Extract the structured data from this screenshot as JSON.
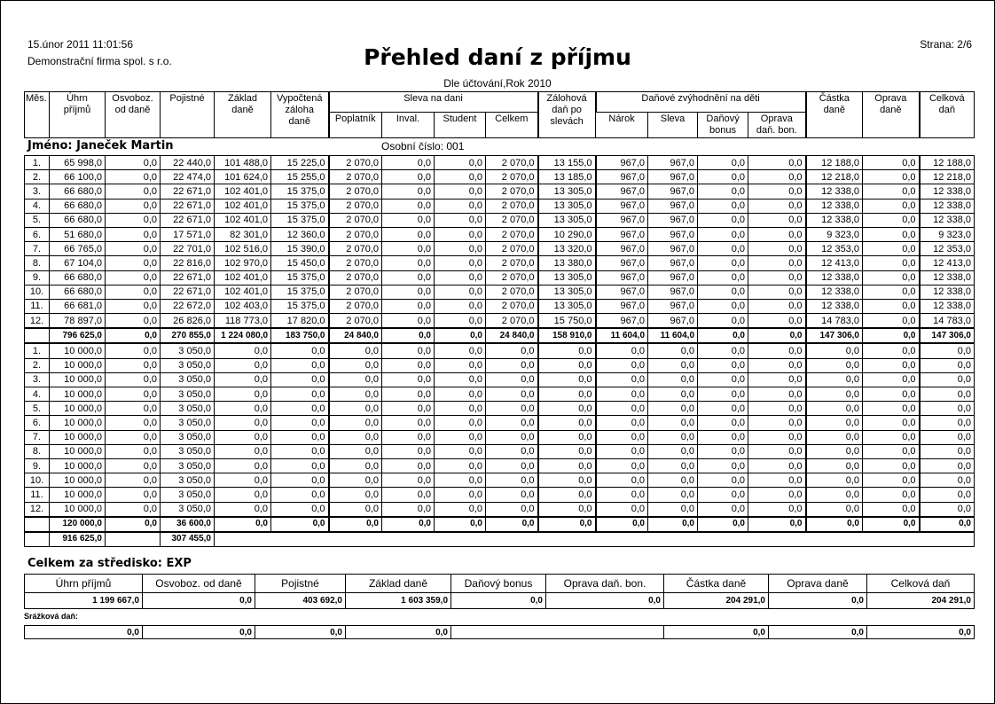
{
  "header": {
    "date": "15.únor 2011  11:01:56",
    "firm": "Demonstrační firma spol. s r.o.",
    "title": "Přehled daní z příjmu",
    "subtitle": "Dle účtování,Rok 2010",
    "page": "Strana: 2/6"
  },
  "columns": {
    "mes": "Měs.",
    "uhrn": "Úhrn\npříjmů",
    "osvoboz": "Osvoboz.\nod daně",
    "pojistne": "Pojistné",
    "zaklad": "Základ\ndaně",
    "vypoctena": "Vypočtená\nzáloha\ndaně",
    "sleva_group": "Sleva na dani",
    "poplatnik": "Poplatník",
    "inval": "Inval.",
    "student": "Student",
    "celkem": "Celkem",
    "zalohova": "Zálohová\ndaň po\nslevách",
    "deti_group": "Daňové zvýhodnění na děti",
    "narok": "Nárok",
    "sleva": "Sleva",
    "bonus": "Daňový\nbonus",
    "oprava_bon": "Oprava\ndaň. bon.",
    "castka": "Částka\ndaně",
    "oprava": "Oprava\ndaně",
    "celkova": "Celková\ndaň"
  },
  "employee": {
    "name": "Jméno: Janeček Martin",
    "personal_number": "Osobní číslo: 001"
  },
  "block1": {
    "rows": [
      [
        "1.",
        "65 998,0",
        "0,0",
        "22 440,0",
        "101 488,0",
        "15 225,0",
        "2 070,0",
        "0,0",
        "0,0",
        "2 070,0",
        "13 155,0",
        "967,0",
        "967,0",
        "0,0",
        "0,0",
        "12 188,0",
        "0,0",
        "12 188,0"
      ],
      [
        "2.",
        "66 100,0",
        "0,0",
        "22 474,0",
        "101 624,0",
        "15 255,0",
        "2 070,0",
        "0,0",
        "0,0",
        "2 070,0",
        "13 185,0",
        "967,0",
        "967,0",
        "0,0",
        "0,0",
        "12 218,0",
        "0,0",
        "12 218,0"
      ],
      [
        "3.",
        "66 680,0",
        "0,0",
        "22 671,0",
        "102 401,0",
        "15 375,0",
        "2 070,0",
        "0,0",
        "0,0",
        "2 070,0",
        "13 305,0",
        "967,0",
        "967,0",
        "0,0",
        "0,0",
        "12 338,0",
        "0,0",
        "12 338,0"
      ],
      [
        "4.",
        "66 680,0",
        "0,0",
        "22 671,0",
        "102 401,0",
        "15 375,0",
        "2 070,0",
        "0,0",
        "0,0",
        "2 070,0",
        "13 305,0",
        "967,0",
        "967,0",
        "0,0",
        "0,0",
        "12 338,0",
        "0,0",
        "12 338,0"
      ],
      [
        "5.",
        "66 680,0",
        "0,0",
        "22 671,0",
        "102 401,0",
        "15 375,0",
        "2 070,0",
        "0,0",
        "0,0",
        "2 070,0",
        "13 305,0",
        "967,0",
        "967,0",
        "0,0",
        "0,0",
        "12 338,0",
        "0,0",
        "12 338,0"
      ],
      [
        "6.",
        "51 680,0",
        "0,0",
        "17 571,0",
        "82 301,0",
        "12 360,0",
        "2 070,0",
        "0,0",
        "0,0",
        "2 070,0",
        "10 290,0",
        "967,0",
        "967,0",
        "0,0",
        "0,0",
        "9 323,0",
        "0,0",
        "9 323,0"
      ],
      [
        "7.",
        "66 765,0",
        "0,0",
        "22 701,0",
        "102 516,0",
        "15 390,0",
        "2 070,0",
        "0,0",
        "0,0",
        "2 070,0",
        "13 320,0",
        "967,0",
        "967,0",
        "0,0",
        "0,0",
        "12 353,0",
        "0,0",
        "12 353,0"
      ],
      [
        "8.",
        "67 104,0",
        "0,0",
        "22 816,0",
        "102 970,0",
        "15 450,0",
        "2 070,0",
        "0,0",
        "0,0",
        "2 070,0",
        "13 380,0",
        "967,0",
        "967,0",
        "0,0",
        "0,0",
        "12 413,0",
        "0,0",
        "12 413,0"
      ],
      [
        "9.",
        "66 680,0",
        "0,0",
        "22 671,0",
        "102 401,0",
        "15 375,0",
        "2 070,0",
        "0,0",
        "0,0",
        "2 070,0",
        "13 305,0",
        "967,0",
        "967,0",
        "0,0",
        "0,0",
        "12 338,0",
        "0,0",
        "12 338,0"
      ],
      [
        "10.",
        "66 680,0",
        "0,0",
        "22 671,0",
        "102 401,0",
        "15 375,0",
        "2 070,0",
        "0,0",
        "0,0",
        "2 070,0",
        "13 305,0",
        "967,0",
        "967,0",
        "0,0",
        "0,0",
        "12 338,0",
        "0,0",
        "12 338,0"
      ],
      [
        "11.",
        "66 681,0",
        "0,0",
        "22 672,0",
        "102 403,0",
        "15 375,0",
        "2 070,0",
        "0,0",
        "0,0",
        "2 070,0",
        "13 305,0",
        "967,0",
        "967,0",
        "0,0",
        "0,0",
        "12 338,0",
        "0,0",
        "12 338,0"
      ],
      [
        "12.",
        "78 897,0",
        "0,0",
        "26 826,0",
        "118 773,0",
        "17 820,0",
        "2 070,0",
        "0,0",
        "0,0",
        "2 070,0",
        "15 750,0",
        "967,0",
        "967,0",
        "0,0",
        "0,0",
        "14 783,0",
        "0,0",
        "14 783,0"
      ]
    ],
    "total": [
      "",
      "796 625,0",
      "0,0",
      "270 855,0",
      "1 224 080,0",
      "183 750,0",
      "24 840,0",
      "0,0",
      "0,0",
      "24 840,0",
      "158 910,0",
      "11 604,0",
      "11 604,0",
      "0,0",
      "0,0",
      "147 306,0",
      "0,0",
      "147 306,0"
    ]
  },
  "block2": {
    "rows": [
      [
        "1.",
        "10 000,0",
        "0,0",
        "3 050,0",
        "0,0",
        "0,0",
        "0,0",
        "0,0",
        "0,0",
        "0,0",
        "0,0",
        "0,0",
        "0,0",
        "0,0",
        "0,0",
        "0,0",
        "0,0",
        "0,0"
      ],
      [
        "2.",
        "10 000,0",
        "0,0",
        "3 050,0",
        "0,0",
        "0,0",
        "0,0",
        "0,0",
        "0,0",
        "0,0",
        "0,0",
        "0,0",
        "0,0",
        "0,0",
        "0,0",
        "0,0",
        "0,0",
        "0,0"
      ],
      [
        "3.",
        "10 000,0",
        "0,0",
        "3 050,0",
        "0,0",
        "0,0",
        "0,0",
        "0,0",
        "0,0",
        "0,0",
        "0,0",
        "0,0",
        "0,0",
        "0,0",
        "0,0",
        "0,0",
        "0,0",
        "0,0"
      ],
      [
        "4.",
        "10 000,0",
        "0,0",
        "3 050,0",
        "0,0",
        "0,0",
        "0,0",
        "0,0",
        "0,0",
        "0,0",
        "0,0",
        "0,0",
        "0,0",
        "0,0",
        "0,0",
        "0,0",
        "0,0",
        "0,0"
      ],
      [
        "5.",
        "10 000,0",
        "0,0",
        "3 050,0",
        "0,0",
        "0,0",
        "0,0",
        "0,0",
        "0,0",
        "0,0",
        "0,0",
        "0,0",
        "0,0",
        "0,0",
        "0,0",
        "0,0",
        "0,0",
        "0,0"
      ],
      [
        "6.",
        "10 000,0",
        "0,0",
        "3 050,0",
        "0,0",
        "0,0",
        "0,0",
        "0,0",
        "0,0",
        "0,0",
        "0,0",
        "0,0",
        "0,0",
        "0,0",
        "0,0",
        "0,0",
        "0,0",
        "0,0"
      ],
      [
        "7.",
        "10 000,0",
        "0,0",
        "3 050,0",
        "0,0",
        "0,0",
        "0,0",
        "0,0",
        "0,0",
        "0,0",
        "0,0",
        "0,0",
        "0,0",
        "0,0",
        "0,0",
        "0,0",
        "0,0",
        "0,0"
      ],
      [
        "8.",
        "10 000,0",
        "0,0",
        "3 050,0",
        "0,0",
        "0,0",
        "0,0",
        "0,0",
        "0,0",
        "0,0",
        "0,0",
        "0,0",
        "0,0",
        "0,0",
        "0,0",
        "0,0",
        "0,0",
        "0,0"
      ],
      [
        "9.",
        "10 000,0",
        "0,0",
        "3 050,0",
        "0,0",
        "0,0",
        "0,0",
        "0,0",
        "0,0",
        "0,0",
        "0,0",
        "0,0",
        "0,0",
        "0,0",
        "0,0",
        "0,0",
        "0,0",
        "0,0"
      ],
      [
        "10.",
        "10 000,0",
        "0,0",
        "3 050,0",
        "0,0",
        "0,0",
        "0,0",
        "0,0",
        "0,0",
        "0,0",
        "0,0",
        "0,0",
        "0,0",
        "0,0",
        "0,0",
        "0,0",
        "0,0",
        "0,0"
      ],
      [
        "11.",
        "10 000,0",
        "0,0",
        "3 050,0",
        "0,0",
        "0,0",
        "0,0",
        "0,0",
        "0,0",
        "0,0",
        "0,0",
        "0,0",
        "0,0",
        "0,0",
        "0,0",
        "0,0",
        "0,0",
        "0,0"
      ],
      [
        "12.",
        "10 000,0",
        "0,0",
        "3 050,0",
        "0,0",
        "0,0",
        "0,0",
        "0,0",
        "0,0",
        "0,0",
        "0,0",
        "0,0",
        "0,0",
        "0,0",
        "0,0",
        "0,0",
        "0,0",
        "0,0"
      ]
    ],
    "total": [
      "",
      "120 000,0",
      "0,0",
      "36 600,0",
      "0,0",
      "0,0",
      "0,0",
      "0,0",
      "0,0",
      "0,0",
      "0,0",
      "0,0",
      "0,0",
      "0,0",
      "0,0",
      "0,0",
      "0,0",
      "0,0"
    ]
  },
  "grand_total": [
    "",
    "916 625,0",
    "",
    "307 455,0"
  ],
  "summary": {
    "title": "Celkem za středisko: EXP",
    "headers": [
      "Úhrn příjmů",
      "Osvoboz. od daně",
      "Pojistné",
      "Základ daně",
      "Daňový bonus",
      "Oprava daň. bon.",
      "Částka daně",
      "Oprava daně",
      "Celková daň"
    ],
    "values": [
      "1 199 667,0",
      "0,0",
      "403 692,0",
      "1 603 359,0",
      "0,0",
      "0,0",
      "204 291,0",
      "0,0",
      "204 291,0"
    ]
  },
  "withholding": {
    "label": "Srážková daň:",
    "values": [
      "0,0",
      "0,0",
      "0,0",
      "0,0",
      "",
      "0,0",
      "0,0",
      "0,0"
    ]
  }
}
